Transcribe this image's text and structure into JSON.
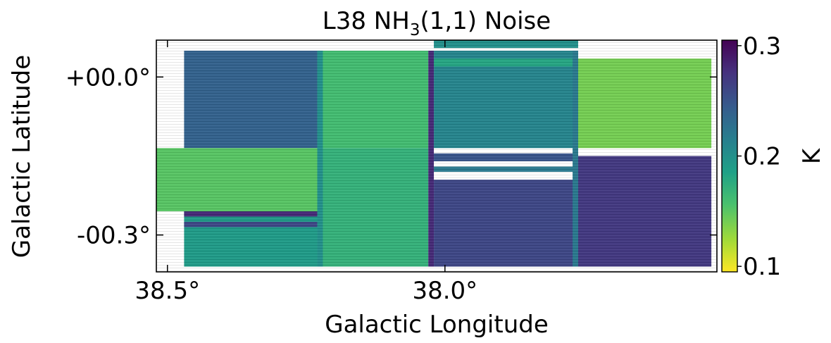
{
  "chart_data": {
    "type": "heatmap",
    "title_main": "L38 NH",
    "title_sub": "3",
    "title_tail": "(1,1) Noise",
    "xlabel": "Galactic Longitude",
    "ylabel": "Galactic Latitude",
    "x_ticks": [
      {
        "value": 38.5,
        "label": "38.5°"
      },
      {
        "value": 38.0,
        "label": "38.0°"
      }
    ],
    "y_ticks": [
      {
        "value": 0.0,
        "label": "+00.0°"
      },
      {
        "value": -0.3,
        "label": "-00.3°"
      }
    ],
    "xlim": [
      38.52,
      37.51
    ],
    "ylim": [
      -0.37,
      0.07
    ],
    "colorbar": {
      "label": "K",
      "colormap": "viridis_r",
      "vmin": 0.095,
      "vmax": 0.305,
      "ticks": [
        {
          "value": 0.3,
          "label": "0.3"
        },
        {
          "value": 0.2,
          "label": "0.2"
        },
        {
          "value": 0.1,
          "label": "0.1"
        }
      ]
    },
    "tiles": [
      {
        "id": "A1",
        "l": [
          38.47,
          38.23
        ],
        "b": [
          -0.135,
          0.05
        ],
        "noise": 0.24
      },
      {
        "id": "A2",
        "l": [
          38.23,
          38.03
        ],
        "b": [
          -0.135,
          0.05
        ],
        "noise": 0.16
      },
      {
        "id": "A3",
        "l": [
          38.02,
          37.76
        ],
        "b": [
          -0.135,
          0.05
        ],
        "noise": 0.21
      },
      {
        "id": "A4",
        "l": [
          37.76,
          37.52
        ],
        "b": [
          -0.135,
          0.035
        ],
        "noise": 0.14
      },
      {
        "id": "B1",
        "l": [
          38.52,
          38.23
        ],
        "b": [
          -0.255,
          -0.135
        ],
        "noise": 0.15
      },
      {
        "id": "B1s",
        "l": [
          38.47,
          38.23
        ],
        "b": [
          -0.36,
          -0.255
        ],
        "noise": 0.19
      },
      {
        "id": "B2",
        "l": [
          38.23,
          38.03
        ],
        "b": [
          -0.36,
          -0.135
        ],
        "noise": 0.17
      },
      {
        "id": "B3",
        "l": [
          38.02,
          37.76
        ],
        "b": [
          -0.36,
          -0.195
        ],
        "noise": 0.26
      },
      {
        "id": "B4",
        "l": [
          37.76,
          37.52
        ],
        "b": [
          -0.36,
          -0.15
        ],
        "noise": 0.27
      }
    ],
    "strips": [
      {
        "l": [
          38.47,
          38.23
        ],
        "b": [
          -0.265,
          -0.255
        ],
        "noise": 0.28
      },
      {
        "l": [
          38.47,
          38.23
        ],
        "b": [
          -0.285,
          -0.275
        ],
        "noise": 0.26
      },
      {
        "l": [
          38.02,
          37.76
        ],
        "b": [
          0.055,
          0.07
        ],
        "noise": 0.2
      },
      {
        "l": [
          38.02,
          37.76
        ],
        "b": [
          0.02,
          0.035
        ],
        "noise": 0.18
      },
      {
        "l": [
          38.02,
          37.76
        ],
        "b": [
          -0.16,
          -0.145
        ],
        "noise": 0.25
      },
      {
        "l": [
          38.02,
          37.76
        ],
        "b": [
          -0.18,
          -0.17
        ],
        "noise": 0.22
      },
      {
        "l": [
          38.23,
          38.22
        ],
        "b": [
          -0.36,
          0.05
        ],
        "noise": 0.2
      },
      {
        "l": [
          38.03,
          38.02
        ],
        "b": [
          -0.36,
          0.05
        ],
        "noise": 0.28
      },
      {
        "l": [
          37.77,
          37.76
        ],
        "b": [
          -0.36,
          0.05
        ],
        "noise": 0.22
      }
    ]
  }
}
